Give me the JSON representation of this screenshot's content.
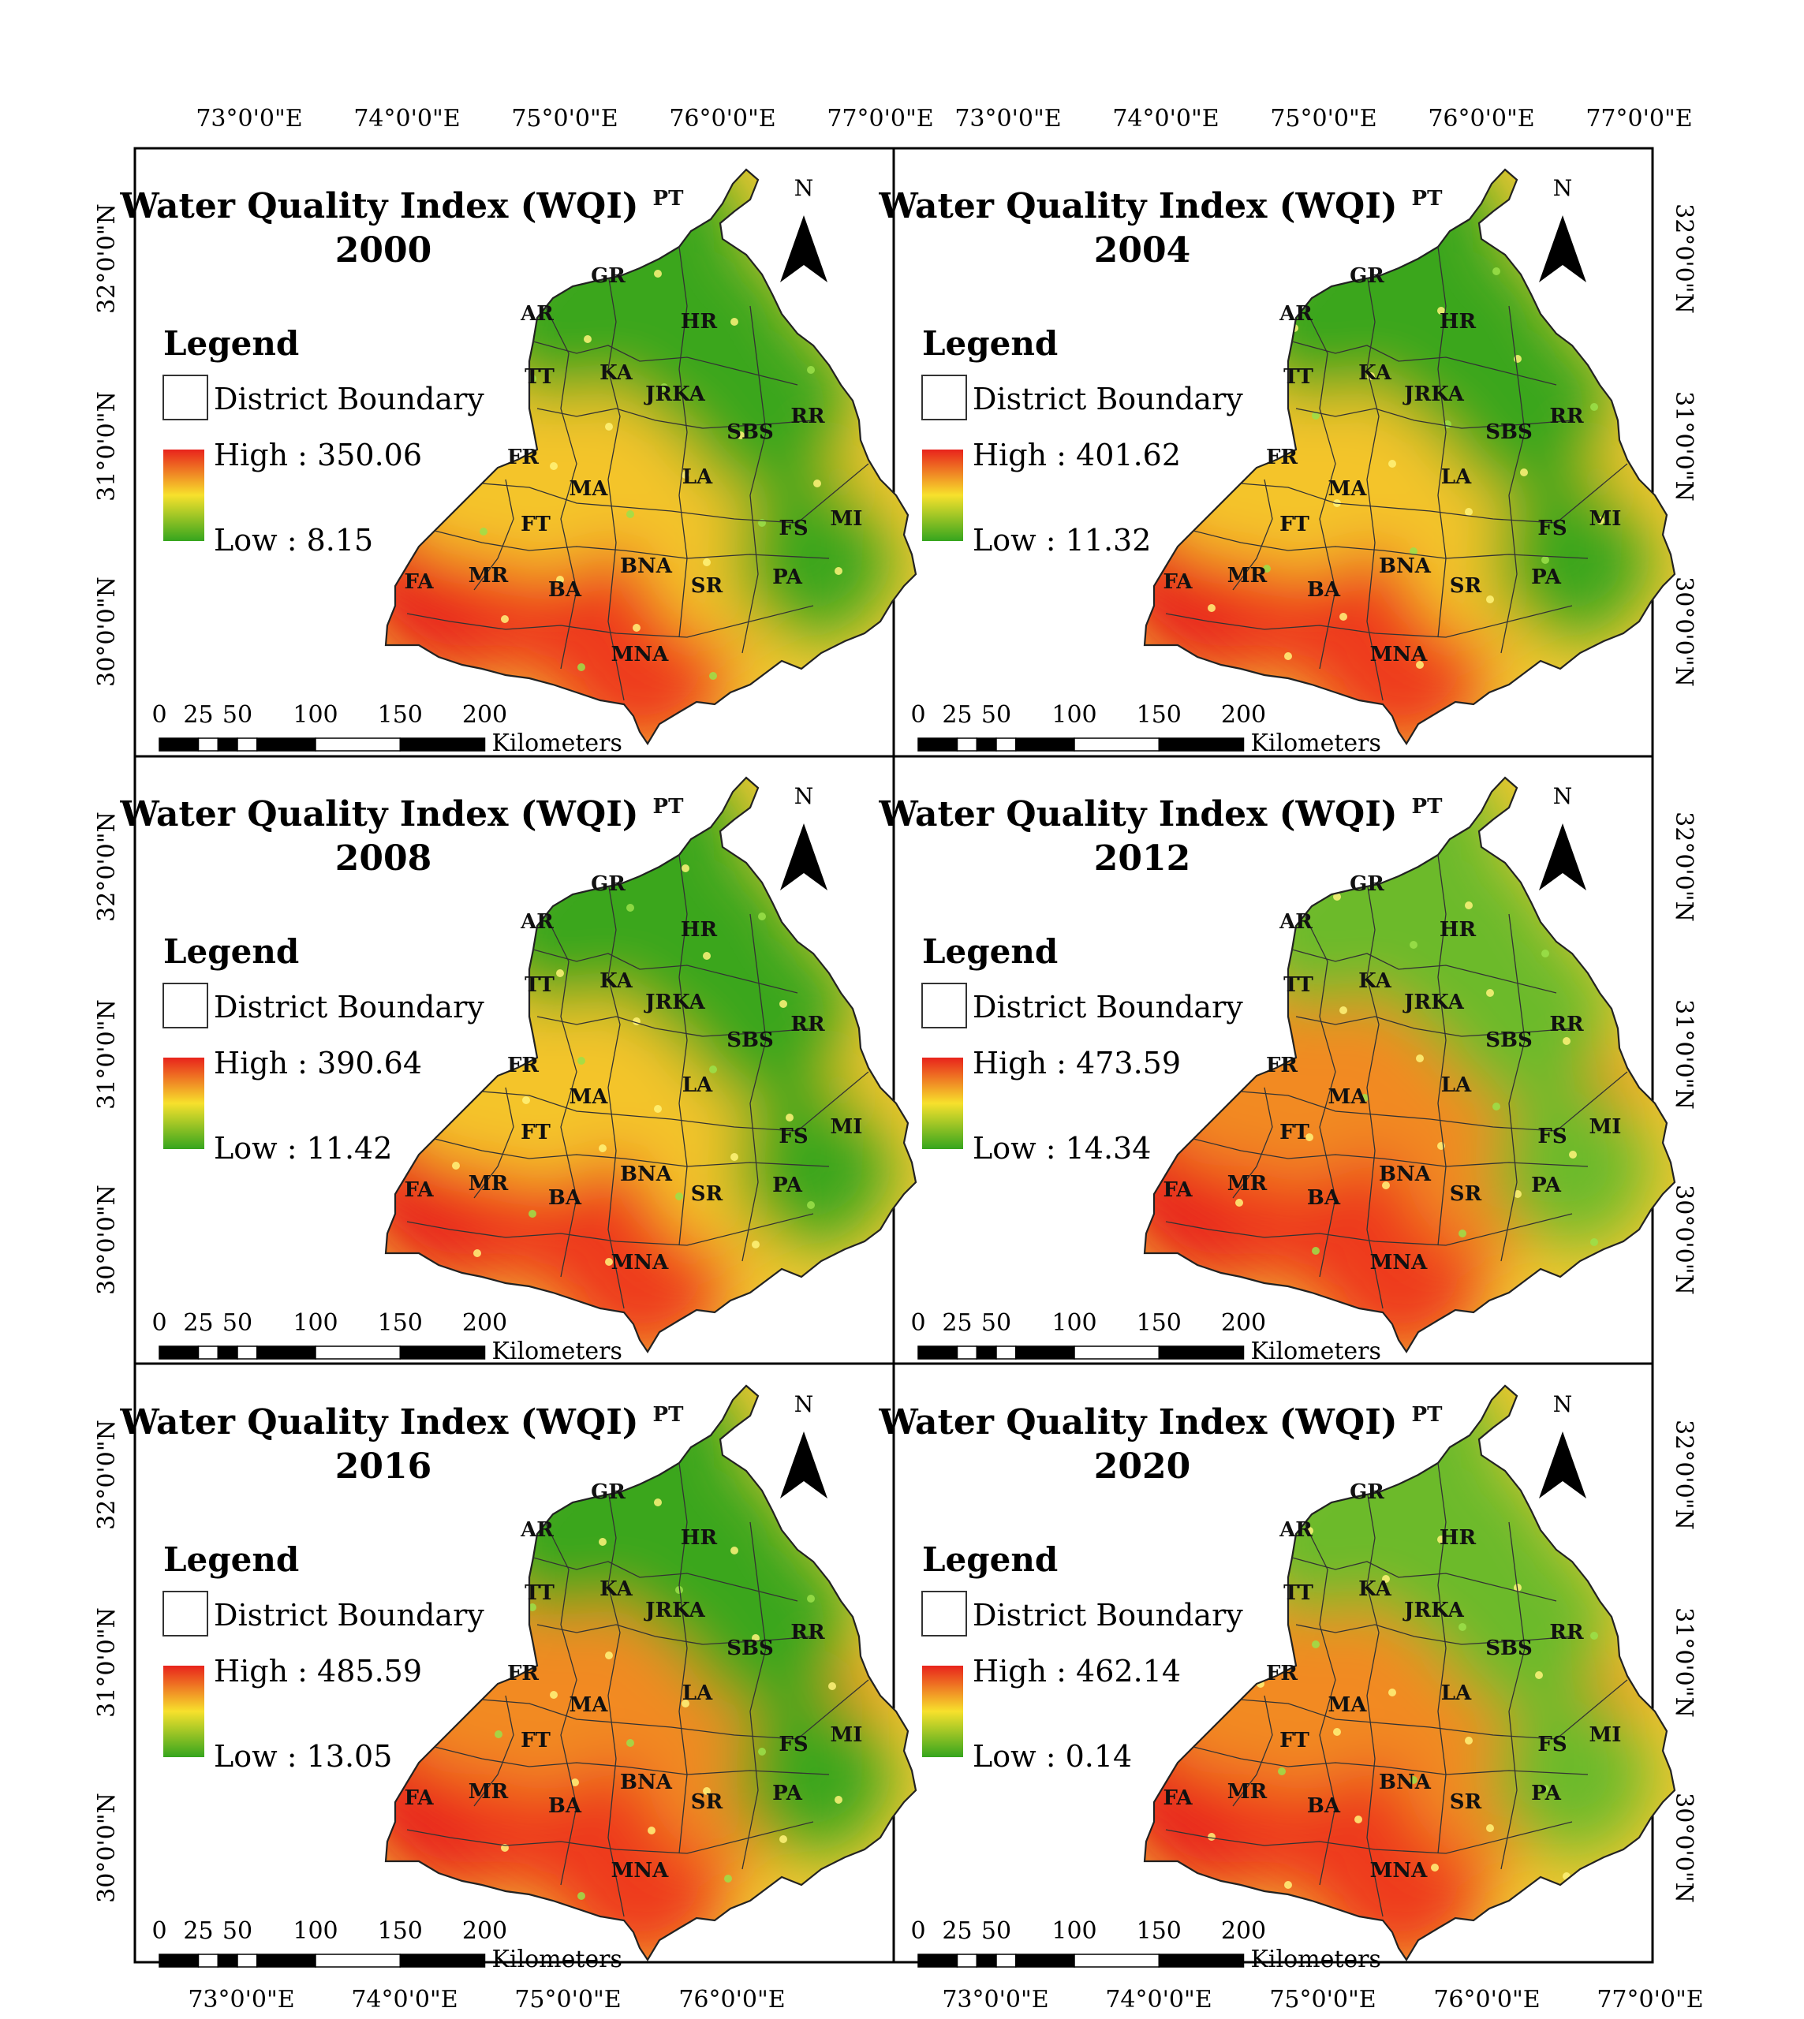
{
  "panels": [
    {
      "title": "Water Quality Index (WQI)",
      "year": "2000",
      "high": "High : 350.06",
      "low": "Low : 8.15",
      "hot": 0.55
    },
    {
      "title": "Water Quality Index (WQI)",
      "year": "2004",
      "high": "High : 401.62",
      "low": "Low : 11.32",
      "hot": 0.6
    },
    {
      "title": "Water Quality Index (WQI)",
      "year": "2008",
      "high": "High : 390.64",
      "low": "Low : 11.42",
      "hot": 0.6
    },
    {
      "title": "Water Quality Index (WQI)",
      "year": "2012",
      "high": "High : 473.59",
      "low": "Low : 14.34",
      "hot": 0.65
    },
    {
      "title": "Water Quality Index (WQI)",
      "year": "2016",
      "high": "High : 485.59",
      "low": "Low : 13.05",
      "hot": 0.62
    },
    {
      "title": "Water Quality Index (WQI)",
      "year": "2020",
      "high": "High : 462.14",
      "low": "Low : 0.14",
      "hot": 0.66
    }
  ],
  "legend": {
    "heading": "Legend",
    "boundary": "District Boundary"
  },
  "north": "N",
  "scale": {
    "ticks": [
      "0",
      "25",
      "50",
      "100",
      "150",
      "200"
    ],
    "unit": "Kilometers"
  },
  "longitudes_top": [
    "73°0'0\"E",
    "74°0'0\"E",
    "75°0'0\"E",
    "76°0'0\"E",
    "77°0'0\"E"
  ],
  "longitudes_bottom_left": [
    "73°0'0\"E",
    "74°0'0\"E",
    "75°0'0\"E",
    "76°0'0\"E"
  ],
  "longitudes_bottom_right": [
    "73°0'0\"E",
    "74°0'0\"E",
    "75°0'0\"E",
    "76°0'0\"E",
    "77°0'0\"E"
  ],
  "latitudes": [
    "32°0'0\"N",
    "31°0'0\"N",
    "30°0'0\"N"
  ],
  "districts": [
    "PT",
    "GR",
    "AR",
    "HR",
    "TT",
    "KA",
    "JRKA",
    "RR",
    "SBS",
    "FR",
    "MA",
    "LA",
    "FT",
    "FS",
    "MI",
    "FA",
    "MR",
    "BA",
    "BNA",
    "SR",
    "PA",
    "MNA"
  ],
  "colors": {
    "high": "#e8231c",
    "mid": "#f5e02a",
    "low": "#3aa61f"
  }
}
